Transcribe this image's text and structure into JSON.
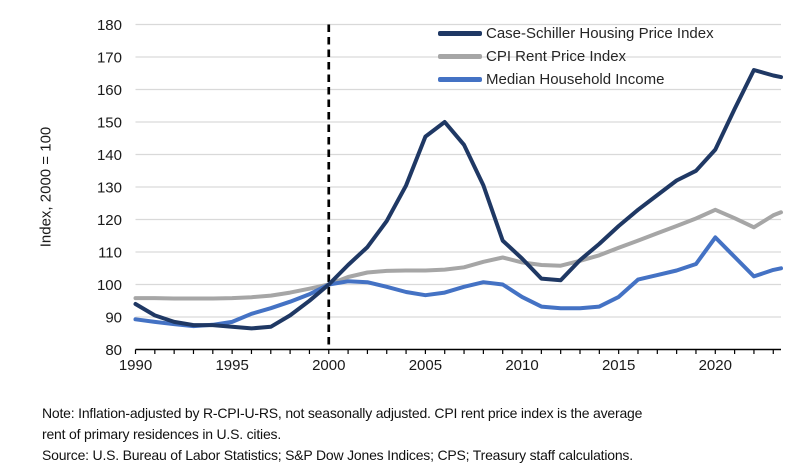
{
  "figure": {
    "y_axis_title": "Index, 2000 = 100"
  },
  "chart_data": {
    "type": "line",
    "title": "",
    "xlabel": "",
    "ylabel": "Index, 2000 = 100",
    "ylim": [
      80,
      180
    ],
    "xlim": [
      1990,
      2023.4
    ],
    "grid": "horizontal",
    "legend_position": "top-right-inside",
    "reference_line_x": 2000,
    "y_ticks": [
      80,
      90,
      100,
      110,
      120,
      130,
      140,
      150,
      160,
      170,
      180
    ],
    "x_ticks": [
      1990,
      1995,
      2000,
      2005,
      2010,
      2015,
      2020
    ],
    "minor_tick_every_year": true,
    "x": [
      1990,
      1991,
      1992,
      1993,
      1994,
      1995,
      1996,
      1997,
      1998,
      1999,
      2000,
      2001,
      2002,
      2003,
      2004,
      2005,
      2006,
      2007,
      2008,
      2009,
      2010,
      2011,
      2012,
      2013,
      2014,
      2015,
      2016,
      2017,
      2018,
      2019,
      2020,
      2021,
      2022,
      2023,
      2023.4
    ],
    "series": [
      {
        "name": "Case-Schiller Housing Price Index",
        "color": "#1F3864",
        "width": 4,
        "values": [
          94,
          90.5,
          88.5,
          87.5,
          87.5,
          87,
          86.5,
          87,
          90.5,
          95,
          100,
          106,
          111.5,
          119.5,
          130.5,
          145.5,
          150,
          143,
          130.5,
          113.5,
          108,
          101.8,
          101.3,
          107.5,
          112.5,
          118,
          123,
          127.5,
          132,
          135,
          141.5,
          154,
          166,
          164.3,
          163.8
        ]
      },
      {
        "name": "CPI Rent Price Index",
        "color": "#A6A6A6",
        "width": 4,
        "values": [
          95.8,
          95.8,
          95.7,
          95.7,
          95.7,
          95.8,
          96.1,
          96.6,
          97.5,
          98.7,
          100,
          102.3,
          103.7,
          104.2,
          104.3,
          104.3,
          104.6,
          105.3,
          107,
          108.3,
          106.8,
          106,
          105.8,
          107.3,
          109,
          111.3,
          113.5,
          115.8,
          118,
          120.3,
          123,
          120.4,
          117.6,
          121.3,
          122.2
        ]
      },
      {
        "name": "Median Household Income",
        "color": "#4472C4",
        "width": 4,
        "values": [
          89.3,
          88.5,
          87.8,
          87.2,
          87.6,
          88.5,
          91,
          92.7,
          94.7,
          97,
          100,
          101,
          100.7,
          99.3,
          97.7,
          96.7,
          97.5,
          99.3,
          100.7,
          100,
          96.2,
          93.2,
          92.7,
          92.7,
          93.2,
          96.2,
          101.5,
          102.9,
          104.3,
          106.3,
          114.5,
          108.5,
          102.5,
          104.5,
          105
        ]
      }
    ]
  },
  "style": {
    "gridline_color": "#D9D9D9",
    "axis_color": "#000000",
    "tick_color": "#000000",
    "tick_label_color": "#1a1a1a",
    "reference_line_color": "#000000",
    "background": "#ffffff"
  },
  "notes": {
    "line1": "Note: Inflation-adjusted by R-CPI-U-RS, not seasonally adjusted. CPI rent price index is the average",
    "line2": "rent of primary residences in U.S. cities.",
    "line3": "Source: U.S. Bureau of Labor Statistics; S&P Dow Jones Indices; CPS; Treasury staff calculations."
  }
}
